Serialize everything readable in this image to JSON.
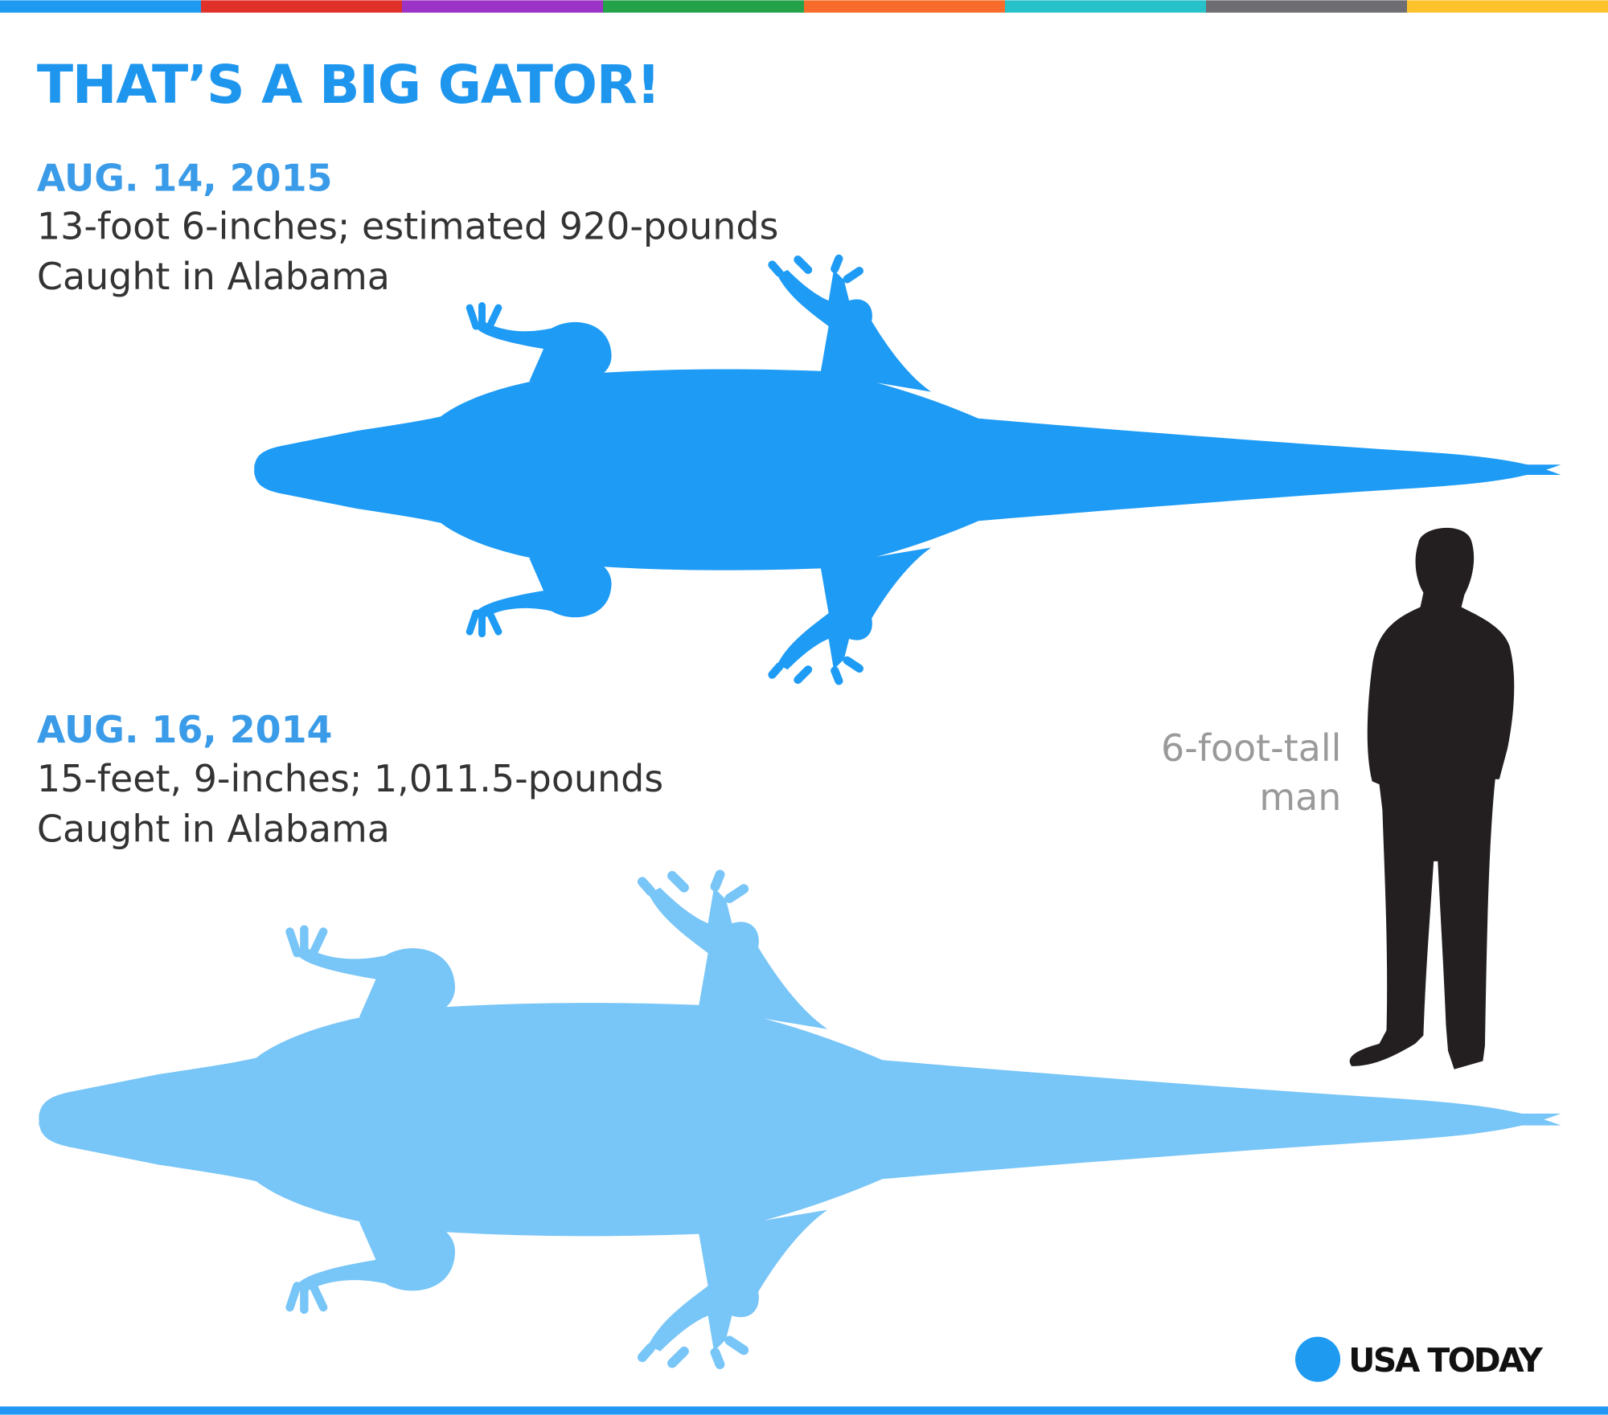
{
  "header": {
    "title": "THAT’S A BIG GATOR!"
  },
  "entries": [
    {
      "date": "AUG. 14, 2015",
      "size": "13-foot 6-inches; estimated 920-pounds",
      "location": "Caught in Alabama"
    },
    {
      "date": "AUG. 16, 2014",
      "size": "15-feet, 9-inches; 1,011.5-pounds",
      "location": "Caught in Alabama"
    }
  ],
  "reference": {
    "label_lines": [
      "6-foot-tall",
      "man"
    ]
  },
  "footer": {
    "logo": "USA TODAY"
  }
}
